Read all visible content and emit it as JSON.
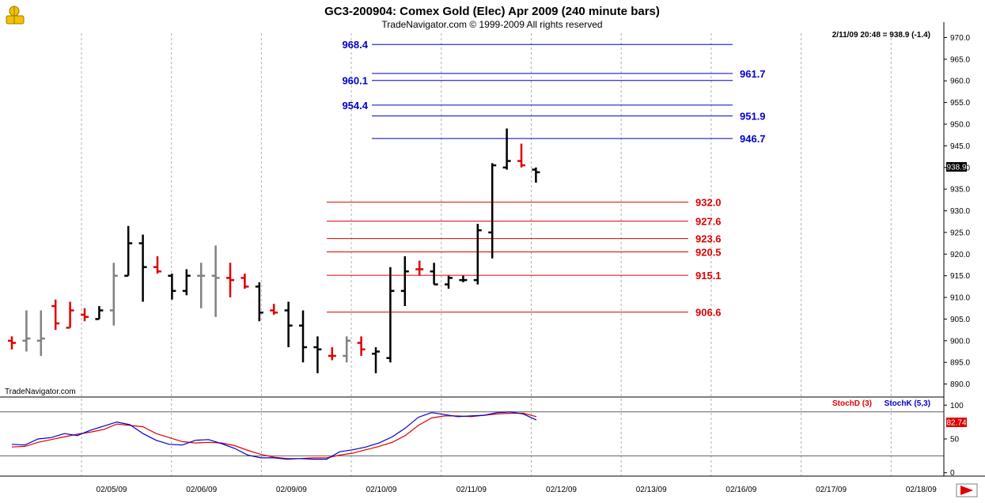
{
  "chart_data": {
    "type": "bar",
    "title": "GC3-200904:  Comex Gold (Elec) Apr 2009  (240 minute bars)",
    "subtitle": "TradeNavigator.com © 1999-2009 All rights reserved",
    "watermark": "TradeNavigator.com",
    "quote": "2/11/09 20:48 = 938.9 (-1.4)",
    "last_price_label": "938.9",
    "grid": true,
    "price_axis": {
      "ylim": [
        887,
        971
      ],
      "ticks": [
        "970.0",
        "965.0",
        "960.0",
        "955.0",
        "950.0",
        "945.0",
        "940.0",
        "935.0",
        "930.0",
        "925.0",
        "920.0",
        "915.0",
        "910.0",
        "905.0",
        "900.0",
        "895.0",
        "890.0"
      ]
    },
    "x_axis": {
      "dates": [
        "02/05/09",
        "02/06/09",
        "02/09/09",
        "02/10/09",
        "02/11/09",
        "02/12/09",
        "02/13/09",
        "02/16/09",
        "02/17/09",
        "02/18/09"
      ]
    },
    "colors": {
      "up": "#000000",
      "down": "#e00000",
      "neutral": "#808080",
      "upper_levels": "#0000cc",
      "lower_levels": "#e00000",
      "stoch_d": "#e00000",
      "stoch_k": "#0000cc"
    },
    "bars": [
      {
        "high": 901.0,
        "low": 898.0,
        "open": 900.0,
        "close": 899.5,
        "color": "down"
      },
      {
        "high": 907.0,
        "low": 897.5,
        "open": 900.0,
        "close": 900.5,
        "color": "neutral"
      },
      {
        "high": 907.0,
        "low": 896.5,
        "open": 900.0,
        "close": 900.5,
        "color": "neutral"
      },
      {
        "high": 909.5,
        "low": 902.5,
        "open": 908.0,
        "close": 904.0,
        "color": "down"
      },
      {
        "high": 909.0,
        "low": 903.0,
        "open": 903.0,
        "close": 907.0,
        "color": "down"
      },
      {
        "high": 907.5,
        "low": 904.5,
        "open": 906.0,
        "close": 905.5,
        "color": "down"
      },
      {
        "high": 908.0,
        "low": 905.0,
        "open": 905.0,
        "close": 907.0,
        "color": "up"
      },
      {
        "high": 918.0,
        "low": 903.5,
        "open": 907.0,
        "close": 915.0,
        "color": "neutral"
      },
      {
        "high": 926.5,
        "low": 915.0,
        "open": 915.0,
        "close": 922.5,
        "color": "up"
      },
      {
        "high": 924.5,
        "low": 909.0,
        "open": 922.5,
        "close": 917.0,
        "color": "up"
      },
      {
        "high": 919.5,
        "low": 915.5,
        "open": 917.0,
        "close": 916.0,
        "color": "down"
      },
      {
        "high": 915.5,
        "low": 909.5,
        "open": 915.0,
        "close": 911.5,
        "color": "up"
      },
      {
        "high": 916.5,
        "low": 910.5,
        "open": 911.5,
        "close": 915.0,
        "color": "up"
      },
      {
        "high": 918.0,
        "low": 907.5,
        "open": 915.0,
        "close": 915.0,
        "color": "neutral"
      },
      {
        "high": 922.0,
        "low": 905.5,
        "open": 915.0,
        "close": 914.5,
        "color": "neutral"
      },
      {
        "high": 918.0,
        "low": 910.0,
        "open": 914.5,
        "close": 914.0,
        "color": "down"
      },
      {
        "high": 915.5,
        "low": 912.0,
        "open": 914.5,
        "close": 912.5,
        "color": "down"
      },
      {
        "high": 913.5,
        "low": 904.5,
        "open": 912.5,
        "close": 906.5,
        "color": "up"
      },
      {
        "high": 908.5,
        "low": 906.0,
        "open": 907.0,
        "close": 906.5,
        "color": "down"
      },
      {
        "high": 909.0,
        "low": 898.5,
        "open": 907.0,
        "close": 903.5,
        "color": "up"
      },
      {
        "high": 907.0,
        "low": 895.0,
        "open": 903.5,
        "close": 898.5,
        "color": "up"
      },
      {
        "high": 901.0,
        "low": 892.5,
        "open": 898.5,
        "close": 898.0,
        "color": "up"
      },
      {
        "high": 898.5,
        "low": 895.5,
        "open": 896.5,
        "close": 896.5,
        "color": "down"
      },
      {
        "high": 901.0,
        "low": 895.0,
        "open": 896.5,
        "close": 900.0,
        "color": "neutral"
      },
      {
        "high": 901.0,
        "low": 896.5,
        "open": 899.5,
        "close": 898.0,
        "color": "down"
      },
      {
        "high": 898.5,
        "low": 892.5,
        "open": 897.0,
        "close": 897.5,
        "color": "up"
      },
      {
        "high": 917.0,
        "low": 895.0,
        "open": 896.0,
        "close": 911.5,
        "color": "up"
      },
      {
        "high": 919.5,
        "low": 908.0,
        "open": 911.5,
        "close": 916.0,
        "color": "up"
      },
      {
        "high": 918.5,
        "low": 915.0,
        "open": 916.5,
        "close": 916.5,
        "color": "down"
      },
      {
        "high": 918.0,
        "low": 913.0,
        "open": 916.0,
        "close": 913.0,
        "color": "up"
      },
      {
        "high": 915.0,
        "low": 912.0,
        "open": 913.0,
        "close": 914.5,
        "color": "up"
      },
      {
        "high": 915.0,
        "low": 913.5,
        "open": 914.0,
        "close": 914.0,
        "color": "up"
      },
      {
        "high": 927.0,
        "low": 913.0,
        "open": 914.0,
        "close": 925.5,
        "color": "up"
      },
      {
        "high": 941.0,
        "low": 919.0,
        "open": 925.0,
        "close": 940.5,
        "color": "up"
      },
      {
        "high": 949.0,
        "low": 939.5,
        "open": 940.0,
        "close": 941.5,
        "color": "up"
      },
      {
        "high": 945.5,
        "low": 940.0,
        "open": 941.5,
        "close": 940.5,
        "color": "down"
      },
      {
        "high": 940.0,
        "low": 936.5,
        "open": 939.5,
        "close": 938.9,
        "color": "up"
      }
    ],
    "upper_levels": [
      {
        "label": "968.4",
        "value": 968.4,
        "side": "left"
      },
      {
        "label": "961.7",
        "value": 961.7,
        "side": "right"
      },
      {
        "label": "960.1",
        "value": 960.1,
        "side": "left"
      },
      {
        "label": "954.4",
        "value": 954.4,
        "side": "left"
      },
      {
        "label": "951.9",
        "value": 951.9,
        "side": "right"
      },
      {
        "label": "946.7",
        "value": 946.7,
        "side": "right"
      }
    ],
    "lower_levels": [
      {
        "label": "932.0",
        "value": 932.0
      },
      {
        "label": "927.6",
        "value": 927.6
      },
      {
        "label": "923.6",
        "value": 923.6
      },
      {
        "label": "920.5",
        "value": 920.5
      },
      {
        "label": "915.1",
        "value": 915.1
      },
      {
        "label": "906.6",
        "value": 906.6
      }
    ],
    "stochastic": {
      "legend_d": "StochD (3)",
      "legend_k": "StochK (5,3)",
      "value_label": "82.74",
      "ylim": [
        -5,
        112
      ],
      "ticks": [
        "100",
        "50",
        "0"
      ],
      "bands": [
        90,
        25
      ],
      "k": [
        42,
        41,
        50,
        52,
        58,
        55,
        63,
        69,
        75,
        71,
        58,
        48,
        42,
        41,
        48,
        49,
        43,
        36,
        26,
        22,
        22,
        20,
        21,
        20,
        20,
        31,
        34,
        38,
        44,
        53,
        66,
        82,
        89,
        86,
        83,
        84,
        85,
        89,
        90,
        87,
        78
      ],
      "d": [
        38,
        39,
        45,
        49,
        53,
        57,
        60,
        64,
        72,
        70,
        68,
        58,
        52,
        46,
        44,
        45,
        44,
        40,
        33,
        27,
        23,
        21,
        21,
        22,
        22,
        26,
        29,
        34,
        39,
        45,
        55,
        70,
        81,
        84,
        84,
        83,
        85,
        87,
        88,
        88,
        83
      ]
    }
  }
}
